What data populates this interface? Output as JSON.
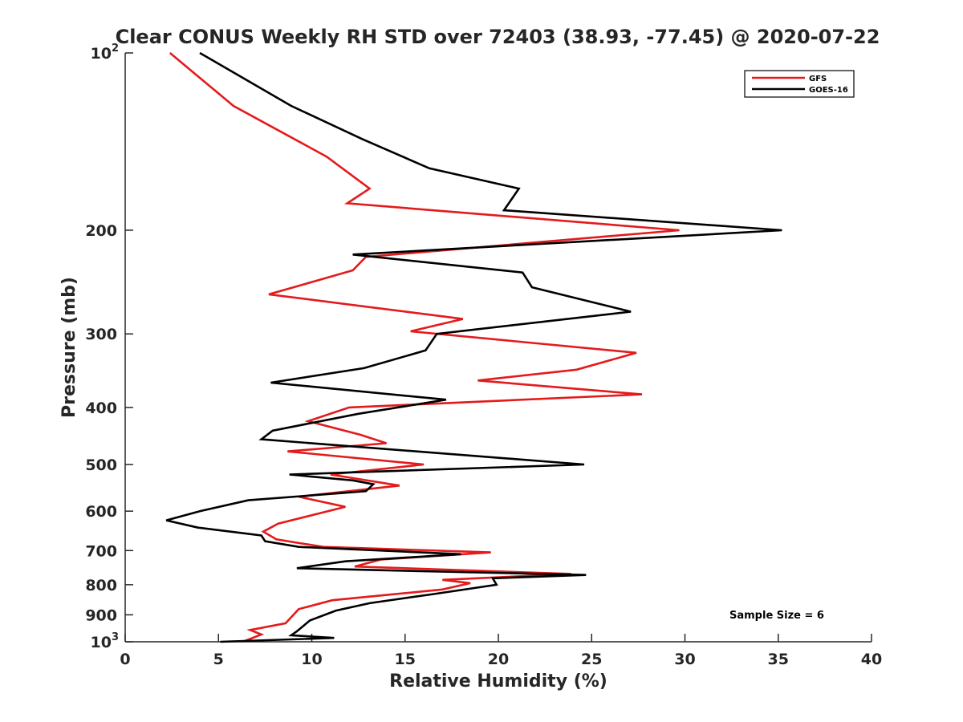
{
  "chart_data": {
    "type": "line",
    "title": "Clear CONUS Weekly RH STD over 72403 (38.93, -77.45) @ 2020-07-22",
    "xlabel": "Relative Humidity (%)",
    "ylabel": "Pressure (mb)",
    "xlim": [
      0,
      40
    ],
    "ylim": [
      100,
      1000
    ],
    "y_scale": "log",
    "y_reversed": true,
    "grid": false,
    "legend_placement": "top-right",
    "x_ticks": [
      {
        "value": 0,
        "label": "0"
      },
      {
        "value": 5,
        "label": "5"
      },
      {
        "value": 10,
        "label": "10"
      },
      {
        "value": 15,
        "label": "15"
      },
      {
        "value": 20,
        "label": "20"
      },
      {
        "value": 25,
        "label": "25"
      },
      {
        "value": 30,
        "label": "30"
      },
      {
        "value": 35,
        "label": "35"
      },
      {
        "value": 40,
        "label": "40"
      }
    ],
    "y_ticks": [
      {
        "value": 100,
        "base": "10",
        "exp": "2"
      },
      {
        "value": 200,
        "base": "200",
        "exp": ""
      },
      {
        "value": 300,
        "base": "300",
        "exp": ""
      },
      {
        "value": 400,
        "base": "400",
        "exp": ""
      },
      {
        "value": 500,
        "base": "500",
        "exp": ""
      },
      {
        "value": 600,
        "base": "600",
        "exp": ""
      },
      {
        "value": 700,
        "base": "700",
        "exp": ""
      },
      {
        "value": 800,
        "base": "800",
        "exp": ""
      },
      {
        "value": 900,
        "base": "900",
        "exp": ""
      },
      {
        "value": 1000,
        "base": "10",
        "exp": "3"
      }
    ],
    "annotation": "Sample Size = 6",
    "series": [
      {
        "name": "GFS",
        "color": "#e41a1c",
        "points": [
          [
            2.4,
            100
          ],
          [
            5.8,
            123
          ],
          [
            10.8,
            150
          ],
          [
            13.1,
            170
          ],
          [
            11.9,
            180
          ],
          [
            29.7,
            200
          ],
          [
            12.9,
            222
          ],
          [
            12.2,
            234
          ],
          [
            7.7,
            257
          ],
          [
            18.1,
            283
          ],
          [
            15.3,
            297
          ],
          [
            27.4,
            323
          ],
          [
            24.2,
            345
          ],
          [
            18.9,
            360
          ],
          [
            27.7,
            380
          ],
          [
            12.0,
            400
          ],
          [
            9.8,
            422
          ],
          [
            12.6,
            445
          ],
          [
            14.0,
            460
          ],
          [
            8.7,
            475
          ],
          [
            16.0,
            500
          ],
          [
            11.0,
            520
          ],
          [
            14.7,
            543
          ],
          [
            9.3,
            567
          ],
          [
            11.8,
            590
          ],
          [
            8.2,
            630
          ],
          [
            7.4,
            650
          ],
          [
            8.1,
            670
          ],
          [
            10.6,
            690
          ],
          [
            19.6,
            705
          ],
          [
            13.7,
            725
          ],
          [
            12.3,
            745
          ],
          [
            23.9,
            767
          ],
          [
            17.0,
            785
          ],
          [
            18.5,
            795
          ],
          [
            17.0,
            815
          ],
          [
            11.1,
            850
          ],
          [
            9.3,
            880
          ],
          [
            8.6,
            930
          ],
          [
            6.7,
            955
          ],
          [
            7.3,
            972
          ],
          [
            6.3,
            1000
          ]
        ]
      },
      {
        "name": "GOES-16",
        "color": "#000000",
        "points": [
          [
            4.0,
            100
          ],
          [
            8.9,
            123
          ],
          [
            12.7,
            140
          ],
          [
            16.3,
            157
          ],
          [
            21.1,
            170
          ],
          [
            20.3,
            185
          ],
          [
            35.2,
            200
          ],
          [
            12.2,
            220
          ],
          [
            21.3,
            236
          ],
          [
            21.8,
            250
          ],
          [
            27.1,
            275
          ],
          [
            16.7,
            300
          ],
          [
            16.1,
            320
          ],
          [
            12.8,
            343
          ],
          [
            7.8,
            363
          ],
          [
            17.2,
            388
          ],
          [
            12.5,
            410
          ],
          [
            7.9,
            438
          ],
          [
            7.3,
            453
          ],
          [
            24.6,
            500
          ],
          [
            8.8,
            520
          ],
          [
            12.2,
            532
          ],
          [
            13.3,
            540
          ],
          [
            12.9,
            555
          ],
          [
            6.6,
            575
          ],
          [
            4.0,
            600
          ],
          [
            2.2,
            622
          ],
          [
            3.9,
            640
          ],
          [
            7.3,
            660
          ],
          [
            7.5,
            675
          ],
          [
            9.3,
            690
          ],
          [
            18.0,
            710
          ],
          [
            11.8,
            730
          ],
          [
            9.2,
            750
          ],
          [
            24.7,
            770
          ],
          [
            19.7,
            780
          ],
          [
            19.9,
            800
          ],
          [
            16.5,
            830
          ],
          [
            13.1,
            860
          ],
          [
            11.3,
            885
          ],
          [
            9.9,
            920
          ],
          [
            9.2,
            960
          ],
          [
            8.9,
            975
          ],
          [
            11.2,
            985
          ],
          [
            5.1,
            1000
          ]
        ]
      }
    ]
  }
}
